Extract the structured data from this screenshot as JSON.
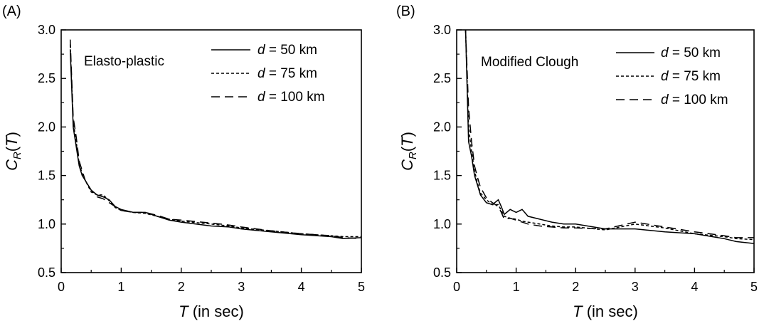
{
  "chart_data": [
    {
      "type": "line",
      "panel_label": "(A)",
      "annotation": "Elasto-plastic",
      "xlabel_var": "T",
      "xlabel_rest": " (in sec)",
      "ylabel_main": "C",
      "ylabel_sub": "R",
      "ylabel_rest": "(",
      "ylabel_var": "T",
      "ylabel_close": ")",
      "xlim": [
        0,
        5
      ],
      "ylim": [
        0.5,
        3.0
      ],
      "xticks": [
        "0",
        "1",
        "2",
        "3",
        "4",
        "5"
      ],
      "yticks": [
        "0.5",
        "1.0",
        "1.5",
        "2.0",
        "2.5",
        "3.0"
      ],
      "grid": false,
      "legend_position": "top-right",
      "series": [
        {
          "name_var": "d",
          "name_rest": " = 50 km",
          "line_style": "solid",
          "x": [
            0.15,
            0.2,
            0.25,
            0.3,
            0.35,
            0.4,
            0.5,
            0.6,
            0.7,
            0.8,
            0.9,
            1.0,
            1.2,
            1.4,
            1.6,
            1.8,
            2.0,
            2.5,
            2.8,
            3.0,
            3.5,
            4.0,
            4.5,
            4.7,
            5.0
          ],
          "y": [
            2.8,
            2.0,
            1.8,
            1.6,
            1.5,
            1.45,
            1.35,
            1.3,
            1.28,
            1.25,
            1.18,
            1.15,
            1.12,
            1.12,
            1.08,
            1.04,
            1.02,
            0.98,
            0.97,
            0.95,
            0.92,
            0.89,
            0.87,
            0.85,
            0.86
          ]
        },
        {
          "name_var": "d",
          "name_rest": " = 75 km",
          "line_style": "dotted",
          "x": [
            0.15,
            0.2,
            0.25,
            0.3,
            0.35,
            0.4,
            0.5,
            0.6,
            0.7,
            0.8,
            0.9,
            1.0,
            1.2,
            1.4,
            1.6,
            1.8,
            2.0,
            2.5,
            2.8,
            3.0,
            3.5,
            4.0,
            4.5,
            4.7,
            5.0
          ],
          "y": [
            2.85,
            2.05,
            1.85,
            1.62,
            1.52,
            1.45,
            1.33,
            1.3,
            1.3,
            1.24,
            1.17,
            1.14,
            1.12,
            1.11,
            1.08,
            1.05,
            1.03,
            1.0,
            0.98,
            0.96,
            0.93,
            0.9,
            0.88,
            0.87,
            0.87
          ]
        },
        {
          "name_var": "d",
          "name_rest": " = 100 km",
          "line_style": "dashed",
          "x": [
            0.15,
            0.2,
            0.25,
            0.3,
            0.35,
            0.4,
            0.5,
            0.6,
            0.7,
            0.8,
            0.9,
            1.0,
            1.2,
            1.4,
            1.6,
            1.8,
            2.0,
            2.5,
            2.8,
            3.0,
            3.5,
            4.0,
            4.5,
            4.7,
            5.0
          ],
          "y": [
            2.9,
            2.1,
            1.9,
            1.65,
            1.55,
            1.45,
            1.35,
            1.28,
            1.26,
            1.22,
            1.18,
            1.14,
            1.12,
            1.12,
            1.09,
            1.05,
            1.04,
            1.01,
            0.99,
            0.97,
            0.93,
            0.9,
            0.88,
            0.86,
            0.85
          ]
        }
      ]
    },
    {
      "type": "line",
      "panel_label": "(B)",
      "annotation": "Modified Clough",
      "xlabel_var": "T",
      "xlabel_rest": " (in sec)",
      "ylabel_main": "C",
      "ylabel_sub": "R",
      "ylabel_rest": "(",
      "ylabel_var": "T",
      "ylabel_close": ")",
      "xlim": [
        0,
        5
      ],
      "ylim": [
        0.5,
        3.0
      ],
      "xticks": [
        "0",
        "1",
        "2",
        "3",
        "4",
        "5"
      ],
      "yticks": [
        "0.5",
        "1.0",
        "1.5",
        "2.0",
        "2.5",
        "3.0"
      ],
      "grid": false,
      "legend_position": "top-right",
      "series": [
        {
          "name_var": "d",
          "name_rest": " = 50 km",
          "line_style": "solid",
          "x": [
            0.15,
            0.2,
            0.25,
            0.3,
            0.35,
            0.4,
            0.5,
            0.6,
            0.7,
            0.75,
            0.8,
            0.9,
            1.0,
            1.1,
            1.2,
            1.4,
            1.6,
            1.8,
            2.0,
            2.5,
            3.0,
            3.5,
            4.0,
            4.5,
            4.7,
            5.0
          ],
          "y": [
            3.0,
            1.85,
            1.7,
            1.5,
            1.4,
            1.3,
            1.22,
            1.2,
            1.25,
            1.18,
            1.1,
            1.15,
            1.12,
            1.15,
            1.08,
            1.05,
            1.02,
            1.0,
            1.0,
            0.95,
            0.95,
            0.92,
            0.9,
            0.85,
            0.82,
            0.8
          ]
        },
        {
          "name_var": "d",
          "name_rest": " = 75 km",
          "line_style": "dotted",
          "x": [
            0.15,
            0.2,
            0.25,
            0.3,
            0.35,
            0.4,
            0.5,
            0.6,
            0.7,
            0.75,
            0.8,
            0.9,
            1.0,
            1.1,
            1.2,
            1.4,
            1.6,
            1.8,
            2.0,
            2.5,
            3.0,
            3.5,
            4.0,
            4.5,
            4.7,
            5.0
          ],
          "y": [
            3.0,
            2.0,
            1.75,
            1.55,
            1.42,
            1.32,
            1.25,
            1.2,
            1.2,
            1.14,
            1.08,
            1.06,
            1.05,
            1.03,
            1.02,
            1.0,
            0.98,
            0.97,
            0.97,
            0.94,
            1.0,
            0.96,
            0.9,
            0.87,
            0.85,
            0.84
          ]
        },
        {
          "name_var": "d",
          "name_rest": " = 100 km",
          "line_style": "dashed",
          "x": [
            0.15,
            0.2,
            0.25,
            0.3,
            0.35,
            0.4,
            0.5,
            0.6,
            0.7,
            0.75,
            0.8,
            0.9,
            1.0,
            1.1,
            1.2,
            1.4,
            1.6,
            1.8,
            2.0,
            2.5,
            3.0,
            3.5,
            4.0,
            4.5,
            4.7,
            5.0
          ],
          "y": [
            3.0,
            2.2,
            1.85,
            1.6,
            1.48,
            1.38,
            1.27,
            1.22,
            1.18,
            1.12,
            1.05,
            1.06,
            1.04,
            1.02,
            1.0,
            0.98,
            0.97,
            0.96,
            0.96,
            0.95,
            1.02,
            0.97,
            0.92,
            0.88,
            0.86,
            0.86
          ]
        }
      ]
    }
  ]
}
